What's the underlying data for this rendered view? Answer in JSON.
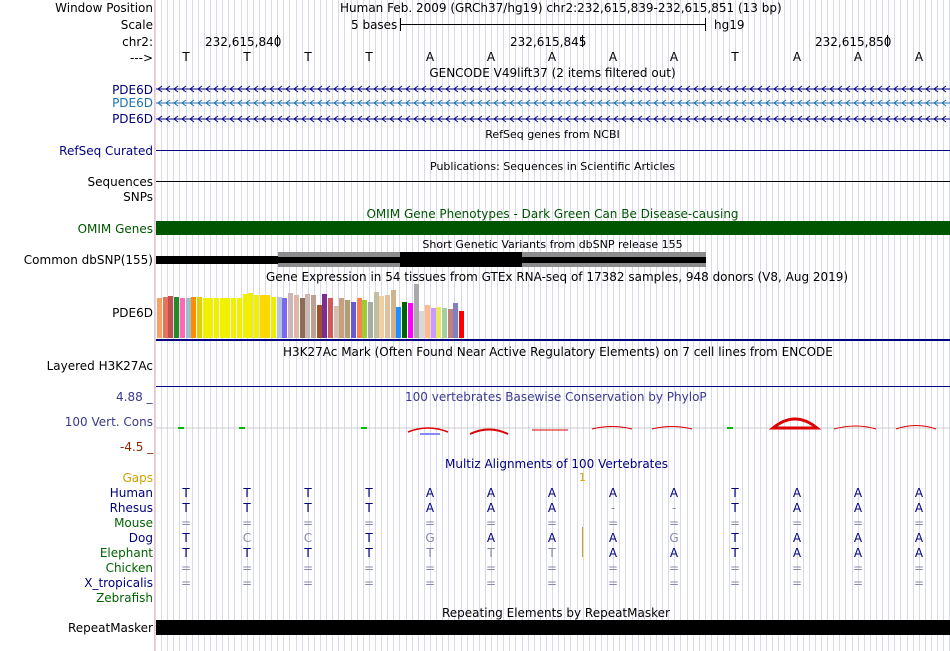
{
  "header": {
    "window_position_label": "Window Position",
    "scale_label": "Scale",
    "chr_label": "chr2:",
    "arrow_label": "--->",
    "assembly_text": "Human Feb. 2009 (GRCh37/hg19)   chr2:232,615,839-232,615,851 (13 bp)",
    "scale_text": "5 bases",
    "scale_db": "hg19",
    "coord_1": "232,615,840",
    "coord_2": "232,615,845",
    "coord_3": "232,615,850"
  },
  "sequence": {
    "bases": [
      "T",
      "T",
      "T",
      "T",
      "A",
      "A",
      "A",
      "A",
      "A",
      "T",
      "A",
      "A",
      "A"
    ]
  },
  "tracks": {
    "gencode_title": "GENCODE V49lift37 (2 items filtered out)",
    "gencode_rows": [
      "PDE6D",
      "PDE6D",
      "PDE6D"
    ],
    "refseq_title": "RefSeq genes from NCBI",
    "refseq_label": "RefSeq Curated",
    "pubs_title": "Publications: Sequences in Scientific Articles",
    "pubs_label": "Sequences",
    "snps_label": "SNPs",
    "omim_title": "OMIM Gene Phenotypes - Dark Green Can Be Disease-causing",
    "omim_label": "OMIM Genes",
    "dbsnp_title": "Short Genetic Variants from dbSNP release 155",
    "dbsnp_label": "Common dbSNP(155)",
    "gtex_title": "Gene Expression in 54 tissues from GTEx RNA-seq of 17382 samples, 948 donors (V8, Aug 2019)",
    "gtex_label": "PDE6D",
    "h3k27ac_title": "H3K27Ac Mark (Often Found Near Active Regulatory Elements) on 7 cell lines from ENCODE",
    "h3k27ac_label": "Layered H3K27Ac",
    "phylop_title": "100 vertebrates Basewise Conservation by PhyloP",
    "phylop_label": "100 Vert. Cons",
    "phylop_max": "4.88 _",
    "phylop_min": "-4.5 _",
    "multiz_title": "Multiz Alignments of 100 Vertebrates",
    "gaps_label": "Gaps",
    "gaps_value": "1",
    "rmsk_title": "Repeating Elements by RepeatMasker",
    "rmsk_label": "RepeatMasker"
  },
  "gtex": {
    "colors": [
      "#f4a460",
      "#e8735a",
      "#c0504d",
      "#228b22",
      "#ff69b4",
      "#9ac0cd",
      "#ff8c00",
      "#e0d000",
      "#f0f000",
      "#f0f000",
      "#f0f000",
      "#f0f000",
      "#f0f000",
      "#f0f000",
      "#f0f000",
      "#f0f000",
      "#f0f000",
      "#f0f000",
      "#ffd700",
      "#ffd700",
      "#eeee00",
      "#b0c4de",
      "#7b68ee",
      "#cdb7b5",
      "#ddb8aa",
      "#8b6c55",
      "#cdb7b5",
      "#c0a090",
      "#a0522d",
      "#7b2e8e",
      "#cd5c5c",
      "#d3c0b0",
      "#c8a080",
      "#b0a070",
      "#6a5acd",
      "#ff7f50",
      "#9acd32",
      "#a9a9a9",
      "#c0c0a0",
      "#f0d0a0",
      "#e0c0a0",
      "#d2b48c",
      "#1e90ff",
      "#006400",
      "#ff00ff",
      "#aaaaaa",
      "#d8d8d8",
      "#ffbb88",
      "#cc99ff",
      "#e8e860",
      "#a0d0a0",
      "#c08080",
      "#8080c0",
      "#ff0000"
    ],
    "values": [
      40,
      41,
      42,
      41,
      40,
      40,
      41,
      41,
      40,
      40,
      40,
      40,
      40,
      40,
      40,
      44,
      45,
      43,
      43,
      43,
      41,
      41,
      40,
      45,
      43,
      40,
      44,
      43,
      33,
      44,
      40,
      32,
      40,
      38,
      36,
      40,
      38,
      36,
      46,
      42,
      43,
      48,
      31,
      36,
      35,
      54,
      27,
      33,
      30,
      31,
      30,
      29,
      35,
      27
    ]
  },
  "multiz": {
    "species": [
      {
        "name": "Human",
        "color": "#000080",
        "row": [
          "T",
          "T",
          "T",
          "T",
          "A",
          "A",
          "A",
          "A",
          "A",
          "T",
          "A",
          "A",
          "A"
        ]
      },
      {
        "name": "Rhesus",
        "color": "#000080",
        "row": [
          "T",
          "T",
          "T",
          "T",
          "A",
          "A",
          "A",
          "-",
          "-",
          "T",
          "A",
          "A",
          "A"
        ]
      },
      {
        "name": "Mouse",
        "color": "#006400",
        "row": [
          "=",
          "=",
          "=",
          "=",
          "=",
          "=",
          "=",
          "=",
          "=",
          "=",
          "=",
          "=",
          "="
        ]
      },
      {
        "name": "Dog",
        "color": "#000080",
        "row": [
          "T",
          "C",
          "C",
          "T",
          "G",
          "A",
          "A",
          "A",
          "G",
          "T",
          "A",
          "A",
          "A"
        ]
      },
      {
        "name": "Elephant",
        "color": "#006400",
        "row": [
          "T",
          "T",
          "T",
          "T",
          "T",
          "T",
          "T",
          "A",
          "A",
          "T",
          "A",
          "A",
          "A"
        ]
      },
      {
        "name": "Chicken",
        "color": "#006400",
        "row": [
          "=",
          "=",
          "=",
          "=",
          "=",
          "=",
          "=",
          "=",
          "=",
          "=",
          "=",
          "=",
          "="
        ]
      },
      {
        "name": "X_tropicalis",
        "color": "#000080",
        "row": [
          "=",
          "=",
          "=",
          "=",
          "=",
          "=",
          "=",
          "=",
          "=",
          "=",
          "=",
          "=",
          "="
        ]
      },
      {
        "name": "Zebrafish",
        "color": "#006400",
        "row": [
          "",
          "",
          "",
          "",
          "",
          "",
          "",
          "",
          "",
          "",
          "",
          "",
          ""
        ]
      }
    ],
    "dim_color": "#8888aa"
  },
  "colors": {
    "track_label_blue": "#000080",
    "gencode_alt": "#1c6fb0",
    "omim_green": "#005500",
    "conservation_label": "#3a3a8c",
    "gaps_orange": "#d4a000",
    "phylop_max_color": "#3a3a8c",
    "phylop_min_color": "#8b2500"
  }
}
